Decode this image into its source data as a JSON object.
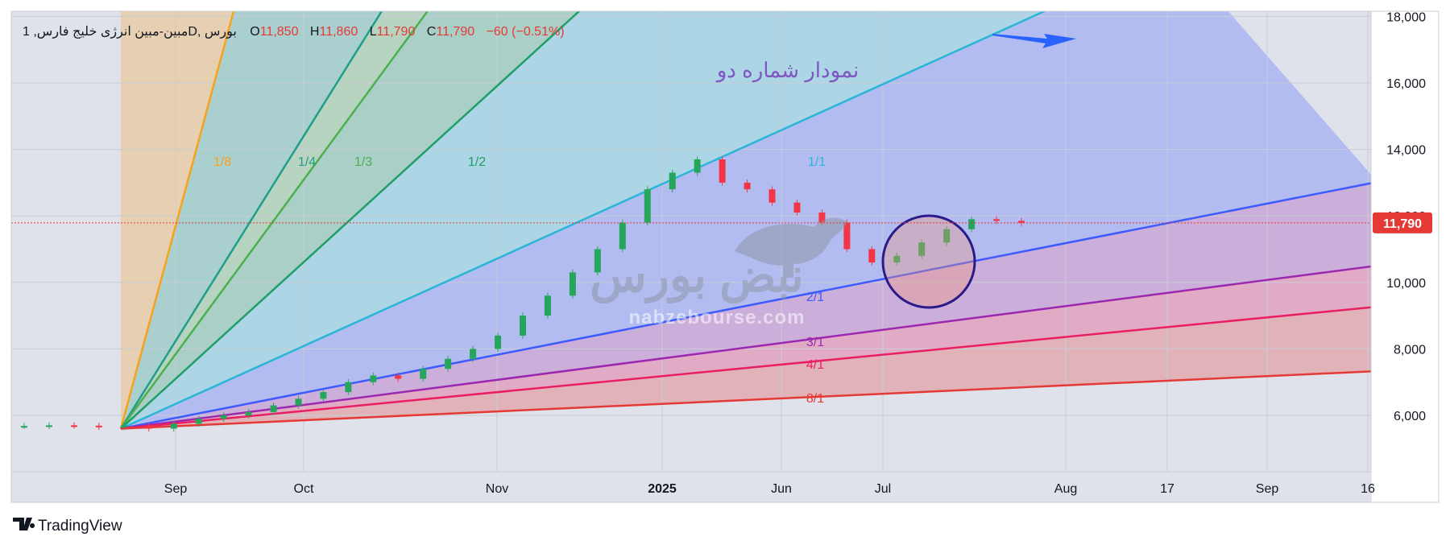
{
  "header": {
    "symbol": "مبین-مبین انرژی خلیج فارس, 1D, بورس",
    "o_label": "O",
    "o_value": "11,850",
    "h_label": "H",
    "h_value": "11,860",
    "l_label": "L",
    "l_value": "11,790",
    "c_label": "C",
    "c_value": "11,790",
    "change": "−60 (−0.51%)"
  },
  "chart_data": {
    "type": "candlestick",
    "title": "نمودار شماره دو",
    "x_labels": [
      "Sep",
      "Oct",
      "Nov",
      "2025",
      "Jun",
      "Jul",
      "Aug",
      "17",
      "Sep",
      "16"
    ],
    "y_ticks": [
      "18,000",
      "16,000",
      "14,000",
      "12,000",
      "10,000",
      "8,000",
      "6,000"
    ],
    "ylim": [
      4500,
      18000
    ],
    "last_price": "11,790",
    "gann_fan": {
      "origin": {
        "x_index": 0,
        "price": 5600
      },
      "ratios": [
        "1/8",
        "1/4",
        "1/3",
        "1/2",
        "1/1",
        "2/1",
        "3/1",
        "4/1",
        "8/1"
      ],
      "colors": [
        "#f7a21b",
        "#1f9e89",
        "#4caf50",
        "#1f9e6a",
        "#29b6d6",
        "#3d5afe",
        "#9c27b0",
        "#e91e63",
        "#e53935"
      ]
    },
    "price_path": [
      5680,
      5700,
      5690,
      5650,
      5700,
      5600,
      5750,
      5900,
      6000,
      6100,
      6300,
      6500,
      6700,
      7000,
      7200,
      7100,
      7400,
      7700,
      8000,
      8400,
      9000,
      9600,
      10300,
      11000,
      11800,
      12800,
      13300,
      13700,
      13000,
      12800,
      12400,
      12100,
      11800,
      11000,
      10600,
      10800,
      11200,
      11600,
      11900,
      11850,
      11790
    ]
  },
  "watermark": {
    "brand": "نبض بورس",
    "site": "nabzebourse.com"
  },
  "footer": {
    "logo_text": "TradingView"
  }
}
